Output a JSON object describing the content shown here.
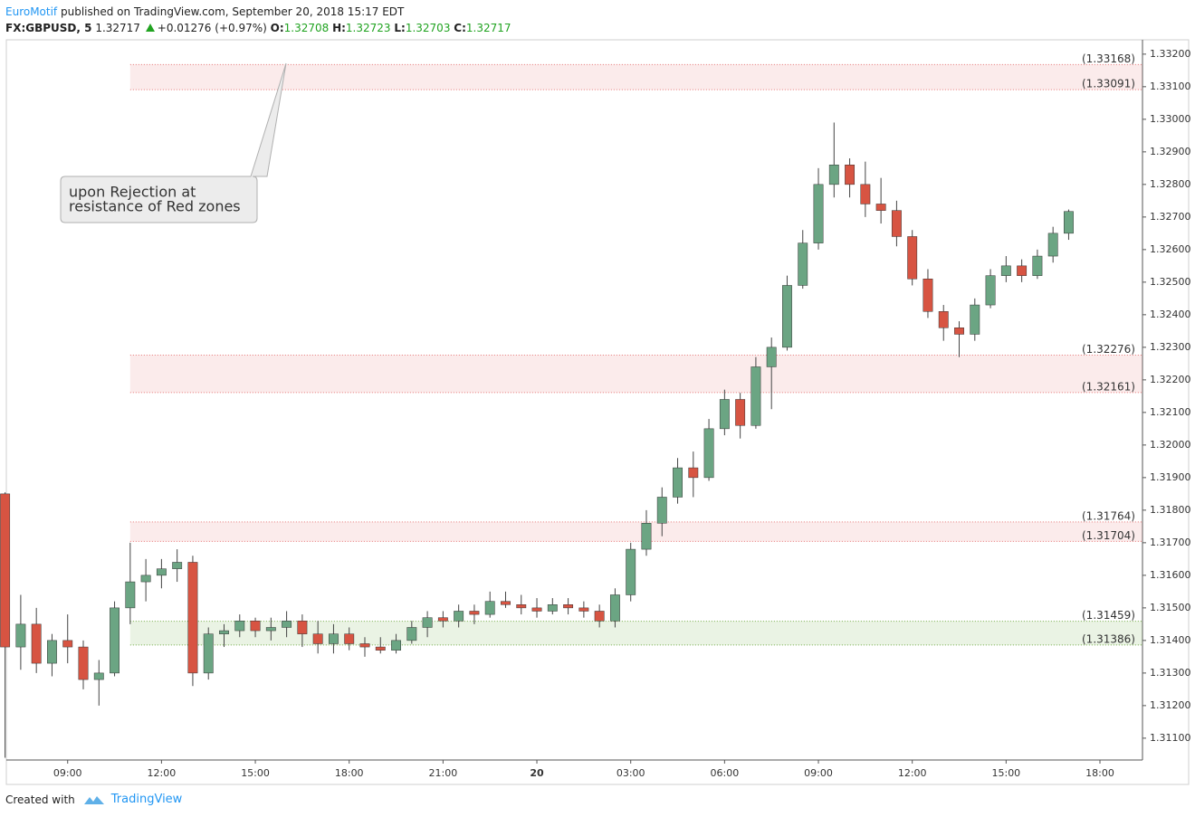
{
  "header": {
    "author": "EuroMotif",
    "published": "published on TradingView.com, September 20, 2018 15:17 EDT",
    "symbol": "FX:GBPUSD, 5",
    "last": 1.32717,
    "change": "+0.01276 (+0.97%)",
    "ohlc": [
      {
        "label": "O:",
        "value": 1.32708
      },
      {
        "label": "H:",
        "value": 1.32723
      },
      {
        "label": "L:",
        "value": 1.32703
      },
      {
        "label": "C:",
        "value": 1.32717
      }
    ]
  },
  "chart_data": {
    "type": "candlestick",
    "x": [
      7,
      7.5,
      8,
      8.5,
      9,
      9.5,
      10,
      10.5,
      11,
      11.5,
      12,
      12.5,
      13,
      13.5,
      14,
      14.5,
      15,
      15.5,
      16,
      16.5,
      17,
      17.5,
      18,
      18.5,
      19,
      19.5,
      20,
      20.5,
      21,
      21.5,
      22,
      22.5,
      23,
      23.5,
      24,
      24.5,
      25,
      25.5,
      26,
      26.5,
      27,
      27.5,
      28,
      28.5,
      29,
      29.5,
      30,
      30.5,
      31,
      31.5,
      32,
      32.5,
      33,
      33.5,
      34,
      34.5,
      35,
      35.5,
      36,
      36.5,
      37,
      37.5,
      38,
      38.5,
      39,
      39.5,
      40,
      40.5,
      41
    ],
    "open": [
      1.3185,
      1.3138,
      1.3145,
      1.3133,
      1.314,
      1.3138,
      1.3128,
      1.313,
      1.315,
      1.3158,
      1.316,
      1.3162,
      1.3164,
      1.313,
      1.3142,
      1.3143,
      1.3146,
      1.3143,
      1.3144,
      1.3146,
      1.3142,
      1.3139,
      1.3142,
      1.3139,
      1.3138,
      1.3137,
      1.314,
      1.3144,
      1.3147,
      1.3146,
      1.3149,
      1.3148,
      1.3152,
      1.3151,
      1.315,
      1.3149,
      1.3151,
      1.315,
      1.3149,
      1.3146,
      1.3154,
      1.3168,
      1.3176,
      1.3184,
      1.3193,
      1.319,
      1.3205,
      1.3214,
      1.3206,
      1.3224,
      1.323,
      1.3249,
      1.3262,
      1.328,
      1.3286,
      1.328,
      1.3274,
      1.3272,
      1.3264,
      1.3251,
      1.3241,
      1.3236,
      1.3234,
      1.3243,
      1.3252,
      1.3255,
      1.3252,
      1.3258,
      1.3265
    ],
    "high": [
      1.31855,
      1.3154,
      1.315,
      1.3142,
      1.3148,
      1.314,
      1.3134,
      1.3152,
      1.317,
      1.3165,
      1.3165,
      1.3168,
      1.3166,
      1.3144,
      1.3145,
      1.3148,
      1.3147,
      1.3147,
      1.3149,
      1.3148,
      1.3146,
      1.3145,
      1.3144,
      1.3141,
      1.3141,
      1.3142,
      1.3146,
      1.3149,
      1.3149,
      1.3151,
      1.3151,
      1.3155,
      1.3155,
      1.3154,
      1.3153,
      1.3153,
      1.3153,
      1.3152,
      1.3151,
      1.3156,
      1.317,
      1.318,
      1.3187,
      1.3196,
      1.3198,
      1.3208,
      1.3217,
      1.3216,
      1.3227,
      1.3233,
      1.3252,
      1.3266,
      1.3285,
      1.3299,
      1.3288,
      1.3287,
      1.3282,
      1.3275,
      1.3266,
      1.3254,
      1.3243,
      1.3238,
      1.3245,
      1.3254,
      1.3258,
      1.3257,
      1.326,
      1.3267,
      1.32723
    ],
    "low": [
      1.3104,
      1.3131,
      1.313,
      1.3129,
      1.3133,
      1.3125,
      1.312,
      1.3129,
      1.3145,
      1.3152,
      1.3156,
      1.3158,
      1.3126,
      1.3128,
      1.3138,
      1.3141,
      1.3141,
      1.314,
      1.3141,
      1.3138,
      1.3136,
      1.3136,
      1.3137,
      1.3135,
      1.3136,
      1.3136,
      1.3139,
      1.3141,
      1.3144,
      1.3144,
      1.3145,
      1.3147,
      1.315,
      1.3148,
      1.3147,
      1.3148,
      1.3148,
      1.3147,
      1.3144,
      1.3144,
      1.3152,
      1.3166,
      1.3172,
      1.3182,
      1.3184,
      1.3189,
      1.3203,
      1.3202,
      1.3205,
      1.3211,
      1.3229,
      1.3248,
      1.326,
      1.3276,
      1.3276,
      1.327,
      1.3268,
      1.3261,
      1.3249,
      1.3239,
      1.3232,
      1.3227,
      1.3232,
      1.3242,
      1.325,
      1.325,
      1.3251,
      1.3256,
      1.3263
    ],
    "close": [
      1.3138,
      1.3145,
      1.3133,
      1.314,
      1.3138,
      1.3128,
      1.313,
      1.315,
      1.3158,
      1.316,
      1.3162,
      1.3164,
      1.313,
      1.3142,
      1.3143,
      1.3146,
      1.3143,
      1.3144,
      1.3146,
      1.3142,
      1.3139,
      1.3142,
      1.3139,
      1.3138,
      1.3137,
      1.314,
      1.3144,
      1.3147,
      1.3146,
      1.3149,
      1.3148,
      1.3152,
      1.3151,
      1.315,
      1.3149,
      1.3151,
      1.315,
      1.3149,
      1.3146,
      1.3154,
      1.3168,
      1.3176,
      1.3184,
      1.3193,
      1.319,
      1.3205,
      1.3214,
      1.3206,
      1.3224,
      1.323,
      1.3249,
      1.3262,
      1.328,
      1.3286,
      1.328,
      1.3274,
      1.3272,
      1.3264,
      1.3251,
      1.3241,
      1.3236,
      1.3234,
      1.3243,
      1.3252,
      1.3255,
      1.3252,
      1.3258,
      1.3265,
      1.32717
    ],
    "up_color": "#6ba583",
    "down_color": "#d75442",
    "xlim": [
      7.04,
      43.36
    ],
    "ylim": [
      1.31033,
      1.33244
    ],
    "xticks": [
      {
        "value": 9,
        "label": "09:00"
      },
      {
        "value": 12,
        "label": "12:00"
      },
      {
        "value": 15,
        "label": "15:00"
      },
      {
        "value": 18,
        "label": "18:00"
      },
      {
        "value": 21,
        "label": "21:00"
      },
      {
        "value": 24,
        "label": "20"
      },
      {
        "value": 27,
        "label": "03:00"
      },
      {
        "value": 30,
        "label": "06:00"
      },
      {
        "value": 33,
        "label": "09:00"
      },
      {
        "value": 36,
        "label": "12:00"
      },
      {
        "value": 39,
        "label": "15:00"
      },
      {
        "value": 42,
        "label": "18:00"
      }
    ],
    "yticks": [
      {
        "value": 1.311,
        "label": "1.31100"
      },
      {
        "value": 1.312,
        "label": "1.31200"
      },
      {
        "value": 1.313,
        "label": "1.31300"
      },
      {
        "value": 1.314,
        "label": "1.31400"
      },
      {
        "value": 1.315,
        "label": "1.31500"
      },
      {
        "value": 1.316,
        "label": "1.31600"
      },
      {
        "value": 1.317,
        "label": "1.31700"
      },
      {
        "value": 1.318,
        "label": "1.31800"
      },
      {
        "value": 1.319,
        "label": "1.31900"
      },
      {
        "value": 1.32,
        "label": "1.32000"
      },
      {
        "value": 1.321,
        "label": "1.32100"
      },
      {
        "value": 1.322,
        "label": "1.32200"
      },
      {
        "value": 1.323,
        "label": "1.32300"
      },
      {
        "value": 1.324,
        "label": "1.32400"
      },
      {
        "value": 1.325,
        "label": "1.32500"
      },
      {
        "value": 1.326,
        "label": "1.32600"
      },
      {
        "value": 1.327,
        "label": "1.32700"
      },
      {
        "value": 1.328,
        "label": "1.32800"
      },
      {
        "value": 1.329,
        "label": "1.32900"
      },
      {
        "value": 1.33,
        "label": "1.33000"
      },
      {
        "value": 1.331,
        "label": "1.33100"
      },
      {
        "value": 1.332,
        "label": "1.33200"
      }
    ],
    "zones": [
      {
        "start": 11,
        "values": [
          1.33168,
          1.33091
        ],
        "value_labels": [
          "(1.33168)",
          "(1.33091)"
        ],
        "color": "#e57373"
      },
      {
        "start": 11,
        "values": [
          1.32276,
          1.32161
        ],
        "value_labels": [
          "(1.32276)",
          "(1.32161)"
        ],
        "color": "#e57373"
      },
      {
        "start": 11,
        "values": [
          1.31764,
          1.31704
        ],
        "value_labels": [
          "(1.31764)",
          "(1.31704)"
        ],
        "color": "#e57373"
      },
      {
        "start": 11,
        "values": [
          1.31459,
          1.31386
        ],
        "value_labels": [
          "(1.31459)",
          "(1.31386)"
        ],
        "color": "#6ca93f"
      }
    ],
    "annotation": [
      "upon Rejection at",
      "resistance of Red zones"
    ]
  },
  "footer": {
    "created": "Created with",
    "brand": "TradingView"
  }
}
